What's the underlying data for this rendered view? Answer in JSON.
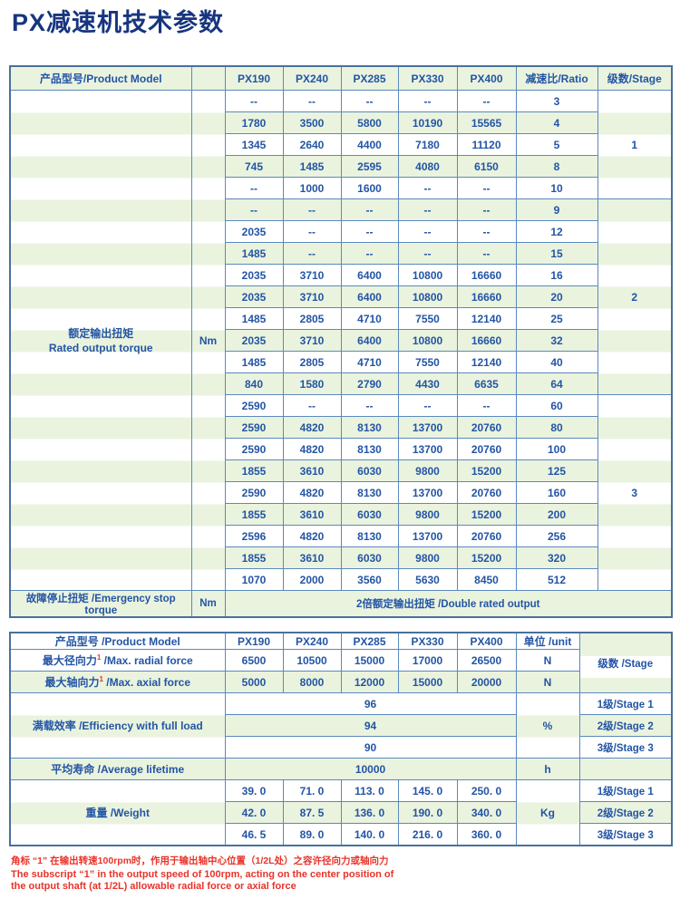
{
  "title": "PX减速机技术参数",
  "colors": {
    "title_navy": "#17357f",
    "text_blue": "#2355a5",
    "border_blue": "#5b89bd",
    "row_green": "#eaf3de",
    "note_red": "#e8332a"
  },
  "table1": {
    "header": {
      "label": "产品型号/Product Model",
      "models": [
        "PX190",
        "PX240",
        "PX285",
        "PX330",
        "PX400"
      ],
      "ratio": "减速比/Ratio",
      "stage": "级数/Stage"
    },
    "torque_label_cn": "额定输出扭矩",
    "torque_label_en": "Rated output torque",
    "unit": "Nm",
    "rows": [
      {
        "values": [
          "--",
          "--",
          "--",
          "--",
          "--"
        ],
        "ratio": "3"
      },
      {
        "values": [
          "1780",
          "3500",
          "5800",
          "10190",
          "15565"
        ],
        "ratio": "4"
      },
      {
        "values": [
          "1345",
          "2640",
          "4400",
          "7180",
          "11120"
        ],
        "ratio": "5"
      },
      {
        "values": [
          "745",
          "1485",
          "2595",
          "4080",
          "6150"
        ],
        "ratio": "8"
      },
      {
        "values": [
          "--",
          "1000",
          "1600",
          "--",
          "--"
        ],
        "ratio": "10"
      },
      {
        "values": [
          "--",
          "--",
          "--",
          "--",
          "--"
        ],
        "ratio": "9"
      },
      {
        "values": [
          "2035",
          "--",
          "--",
          "--",
          "--"
        ],
        "ratio": "12"
      },
      {
        "values": [
          "1485",
          "--",
          "--",
          "--",
          "--"
        ],
        "ratio": "15"
      },
      {
        "values": [
          "2035",
          "3710",
          "6400",
          "10800",
          "16660"
        ],
        "ratio": "16"
      },
      {
        "values": [
          "2035",
          "3710",
          "6400",
          "10800",
          "16660"
        ],
        "ratio": "20"
      },
      {
        "values": [
          "1485",
          "2805",
          "4710",
          "7550",
          "12140"
        ],
        "ratio": "25"
      },
      {
        "values": [
          "2035",
          "3710",
          "6400",
          "10800",
          "16660"
        ],
        "ratio": "32"
      },
      {
        "values": [
          "1485",
          "2805",
          "4710",
          "7550",
          "12140"
        ],
        "ratio": "40"
      },
      {
        "values": [
          "840",
          "1580",
          "2790",
          "4430",
          "6635"
        ],
        "ratio": "64"
      },
      {
        "values": [
          "2590",
          "--",
          "--",
          "--",
          "--"
        ],
        "ratio": "60"
      },
      {
        "values": [
          "2590",
          "4820",
          "8130",
          "13700",
          "20760"
        ],
        "ratio": "80"
      },
      {
        "values": [
          "2590",
          "4820",
          "8130",
          "13700",
          "20760"
        ],
        "ratio": "100"
      },
      {
        "values": [
          "1855",
          "3610",
          "6030",
          "9800",
          "15200"
        ],
        "ratio": "125"
      },
      {
        "values": [
          "2590",
          "4820",
          "8130",
          "13700",
          "20760"
        ],
        "ratio": "160"
      },
      {
        "values": [
          "1855",
          "3610",
          "6030",
          "9800",
          "15200"
        ],
        "ratio": "200"
      },
      {
        "values": [
          "2596",
          "4820",
          "8130",
          "13700",
          "20760"
        ],
        "ratio": "256"
      },
      {
        "values": [
          "1855",
          "3610",
          "6030",
          "9800",
          "15200"
        ],
        "ratio": "320"
      },
      {
        "values": [
          "1070",
          "2000",
          "3560",
          "5630",
          "8450"
        ],
        "ratio": "512"
      }
    ],
    "stage_groups": [
      {
        "label": "1",
        "span": 5
      },
      {
        "label": "2",
        "span": 9
      },
      {
        "label": "3",
        "span": 9
      }
    ],
    "footer": {
      "label": "故障停止扭矩 /Emergency stop torque",
      "unit": "Nm",
      "value": "2倍额定输出扭矩 /Double rated output"
    }
  },
  "table2": {
    "header": {
      "label": "产品型号 /Product Model",
      "models": [
        "PX190",
        "PX240",
        "PX285",
        "PX330",
        "PX400"
      ],
      "unit": "单位 /unit"
    },
    "stage_header": "级数 /Stage",
    "radial": {
      "label_cn": "最大径向力",
      "sup": "1",
      "label_en": " /Max. radial force",
      "values": [
        "6500",
        "10500",
        "15000",
        "17000",
        "26500"
      ],
      "unit": "N"
    },
    "axial": {
      "label_cn": "最大轴向力",
      "sup": "1",
      "label_en": " /Max. axial force",
      "values": [
        "5000",
        "8000",
        "12000",
        "15000",
        "20000"
      ],
      "unit": "N"
    },
    "efficiency": {
      "label": "满载效率 /Efficiency with full load",
      "values": [
        "96",
        "94",
        "90"
      ],
      "unit": "%",
      "stages": [
        "1级/Stage 1",
        "2级/Stage 2",
        "3级/Stage 3"
      ]
    },
    "lifetime": {
      "label": "平均寿命 /Average lifetime",
      "value": "10000",
      "unit": "h"
    },
    "weight": {
      "label": "重量 /Weight",
      "rows": [
        [
          "39. 0",
          "71. 0",
          "113. 0",
          "145. 0",
          "250. 0"
        ],
        [
          "42. 0",
          "87. 5",
          "136. 0",
          "190. 0",
          "340. 0"
        ],
        [
          "46. 5",
          "89. 0",
          "140. 0",
          "216. 0",
          "360. 0"
        ]
      ],
      "unit": "Kg",
      "stages": [
        "1级/Stage 1",
        "2级/Stage 2",
        "3级/Stage 3"
      ]
    }
  },
  "footnote": {
    "cn": "角标 “1” 在输出转速100rpm时，作用于输出轴中心位置（1/2L处）之容许径向力或轴向力",
    "en1": "The subscript “1” in the output speed of 100rpm, acting on the center position of",
    "en2": "the output shaft (at 1/2L) allowable radial force or axial force"
  }
}
